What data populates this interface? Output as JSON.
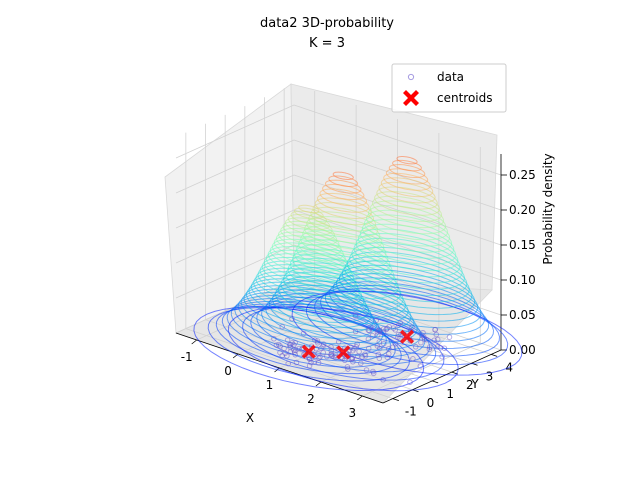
{
  "chart_data": {
    "type": "3d-surface-contour",
    "title_line1": "data2 3D-probability",
    "title_line2": "K = 3",
    "xlabel": "X",
    "ylabel": "Y",
    "zlabel": "Probability density",
    "xlim": [
      -1.5,
      3.5
    ],
    "ylim": [
      -1.5,
      4.5
    ],
    "zlim": [
      0,
      0.28
    ],
    "x_ticks": [
      "-1",
      "0",
      "1",
      "2",
      "3"
    ],
    "y_ticks": [
      "-1",
      "0",
      "1",
      "2",
      "3",
      "4"
    ],
    "z_ticks": [
      "0.00",
      "0.05",
      "0.10",
      "0.15",
      "0.20",
      "0.25"
    ],
    "legend": [
      {
        "label": "data",
        "marker": "open-circle",
        "color": "#6a5acd"
      },
      {
        "label": "centroids",
        "marker": "X",
        "color": "#ff0000"
      }
    ],
    "legend_placement": "top-right",
    "grid": true,
    "colormap": "rainbow",
    "centroids": [
      {
        "x": 0.9,
        "y": 0.2,
        "peak": 0.21
      },
      {
        "x": 1.4,
        "y": 0.9,
        "peak": 0.26
      },
      {
        "x": 1.8,
        "y": 3.3,
        "peak": 0.26
      }
    ]
  }
}
